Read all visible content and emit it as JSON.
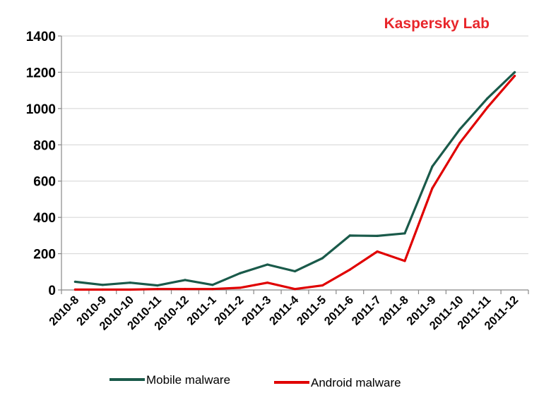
{
  "brand": {
    "text": "Kaspersky Lab",
    "color": "#e8262b"
  },
  "chart_data": {
    "type": "line",
    "title": "",
    "xlabel": "",
    "ylabel": "",
    "ylim": [
      0,
      1400
    ],
    "yticks": [
      0,
      200,
      400,
      600,
      800,
      1000,
      1200,
      1400
    ],
    "grid": true,
    "legend_position": "bottom",
    "categories": [
      "2010-8",
      "2010-9",
      "2010-10",
      "2010-11",
      "2010-12",
      "2011-1",
      "2011-2",
      "2011-3",
      "2011-4",
      "2011-5",
      "2011-6",
      "2011-7",
      "2011-8",
      "2011-9",
      "2011-10",
      "2011-11",
      "2011-12"
    ],
    "series": [
      {
        "name": "Mobile malware",
        "color": "#1a5a4a",
        "values": [
          45,
          28,
          40,
          25,
          55,
          28,
          92,
          140,
          103,
          175,
          300,
          298,
          312,
          680,
          885,
          1055,
          1200
        ]
      },
      {
        "name": "Android malware",
        "color": "#e00000",
        "values": [
          2,
          2,
          2,
          5,
          5,
          5,
          12,
          40,
          5,
          25,
          112,
          212,
          160,
          560,
          810,
          1005,
          1180
        ]
      }
    ]
  }
}
